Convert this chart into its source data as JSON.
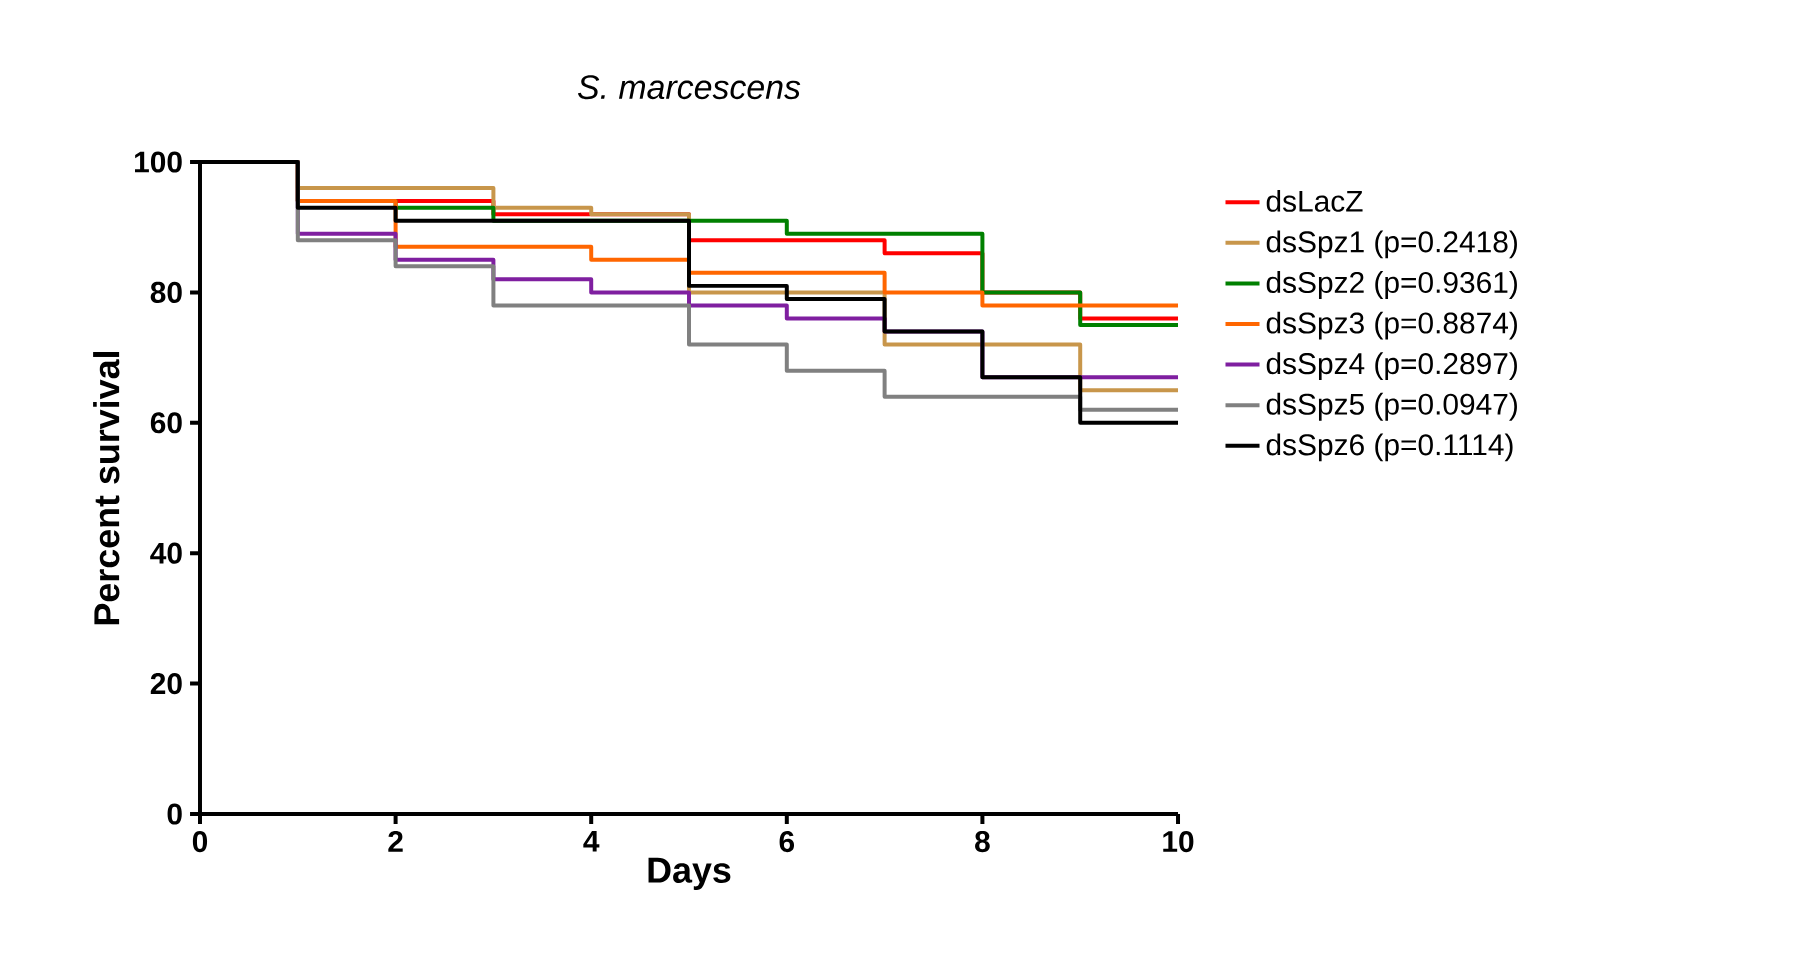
{
  "chart_data": {
    "type": "step",
    "title": "*S. marcescens*",
    "xlabel": "Days",
    "ylabel": "Percent survival",
    "xlim": [
      0,
      10
    ],
    "ylim": [
      0,
      100
    ],
    "xticks": [
      0,
      2,
      4,
      6,
      8,
      10
    ],
    "yticks": [
      0,
      20,
      40,
      60,
      80,
      100
    ],
    "legend": "right",
    "grid": false,
    "series": [
      {
        "name": "dsLacZ",
        "color": "#ff0000",
        "x": [
          0,
          1,
          3,
          5,
          7,
          8,
          9,
          10
        ],
        "values": [
          100,
          94,
          92,
          88,
          86,
          80,
          76,
          76
        ]
      },
      {
        "name": "dsSpz1 (p=0.2418)",
        "color": "#c8964b",
        "x": [
          0,
          1,
          3,
          4,
          5,
          7,
          9,
          10
        ],
        "values": [
          100,
          96,
          93,
          92,
          80,
          72,
          65,
          65
        ]
      },
      {
        "name": "dsSpz2 (p=0.9361)",
        "color": "#008000",
        "x": [
          0,
          1,
          2,
          3,
          6,
          8,
          9,
          10
        ],
        "values": [
          100,
          94,
          93,
          91,
          89,
          80,
          75,
          75
        ]
      },
      {
        "name": "dsSpz3 (p=0.8874)",
        "color": "#ff6600",
        "x": [
          0,
          1,
          2,
          4,
          5,
          7,
          8,
          10
        ],
        "values": [
          100,
          94,
          87,
          85,
          83,
          80,
          78,
          78
        ]
      },
      {
        "name": "dsSpz4 (p=0.2897)",
        "color": "#7f1fa0",
        "x": [
          0,
          1,
          2,
          3,
          4,
          5,
          6,
          7,
          8,
          10
        ],
        "values": [
          100,
          89,
          85,
          82,
          80,
          78,
          76,
          74,
          67,
          67
        ]
      },
      {
        "name": "dsSpz5 (p=0.0947)",
        "color": "#808080",
        "x": [
          0,
          1,
          2,
          3,
          5,
          6,
          7,
          9,
          10
        ],
        "values": [
          100,
          88,
          84,
          78,
          72,
          68,
          64,
          62,
          62
        ]
      },
      {
        "name": "dsSpz6 (p=0.1114)",
        "color": "#000000",
        "x": [
          0,
          1,
          2,
          5,
          6,
          7,
          8,
          9,
          10
        ],
        "values": [
          100,
          93,
          91,
          81,
          79,
          74,
          67,
          60,
          60
        ]
      }
    ]
  }
}
